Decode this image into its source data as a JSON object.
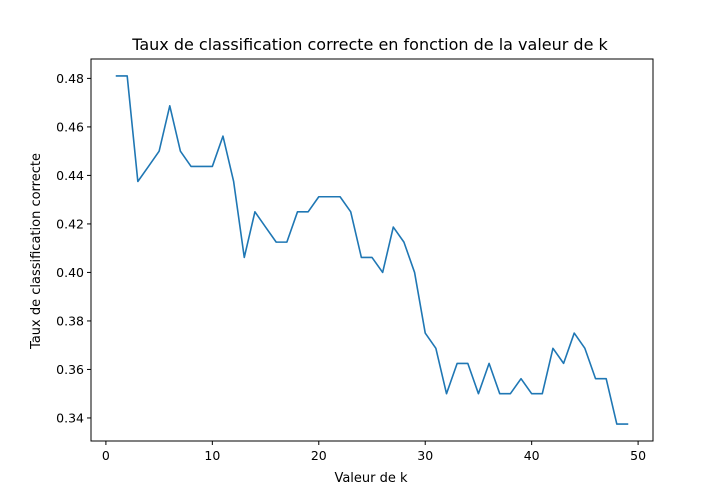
{
  "chart_data": {
    "type": "line",
    "title": "Taux de classification correcte en fonction de la valeur de k",
    "xlabel": "Valeur de k",
    "ylabel": "Taux de classification correcte",
    "xlim": [
      -1.4,
      51.4
    ],
    "ylim": [
      0.3305,
      0.488
    ],
    "xticks": [
      0,
      10,
      20,
      30,
      40,
      50
    ],
    "xtick_labels": [
      "0",
      "10",
      "20",
      "30",
      "40",
      "50"
    ],
    "yticks": [
      0.34,
      0.36,
      0.38,
      0.4,
      0.42,
      0.44,
      0.46,
      0.48
    ],
    "ytick_labels": [
      "0.34",
      "0.36",
      "0.38",
      "0.40",
      "0.42",
      "0.44",
      "0.46",
      "0.48"
    ],
    "grid": false,
    "series": [
      {
        "color": "#1f77b4",
        "x": [
          1,
          2,
          3,
          4,
          5,
          6,
          7,
          8,
          9,
          10,
          11,
          12,
          13,
          14,
          15,
          16,
          17,
          18,
          19,
          20,
          21,
          22,
          23,
          24,
          25,
          26,
          27,
          28,
          29,
          30,
          31,
          32,
          33,
          34,
          35,
          36,
          37,
          38,
          39,
          40,
          41,
          42,
          43,
          44,
          45,
          46,
          47,
          48,
          49
        ],
        "y": [
          0.481,
          0.481,
          0.4375,
          0.4437,
          0.45,
          0.4687,
          0.45,
          0.4437,
          0.4437,
          0.4437,
          0.4562,
          0.4375,
          0.4062,
          0.425,
          0.4187,
          0.4125,
          0.4125,
          0.425,
          0.425,
          0.4312,
          0.4312,
          0.4312,
          0.425,
          0.4062,
          0.4062,
          0.4,
          0.4187,
          0.4125,
          0.4,
          0.375,
          0.3687,
          0.35,
          0.3625,
          0.3625,
          0.35,
          0.3625,
          0.35,
          0.35,
          0.3562,
          0.35,
          0.35,
          0.3687,
          0.3625,
          0.375,
          0.3687,
          0.3562,
          0.3562,
          0.3375,
          0.3375
        ]
      }
    ]
  }
}
